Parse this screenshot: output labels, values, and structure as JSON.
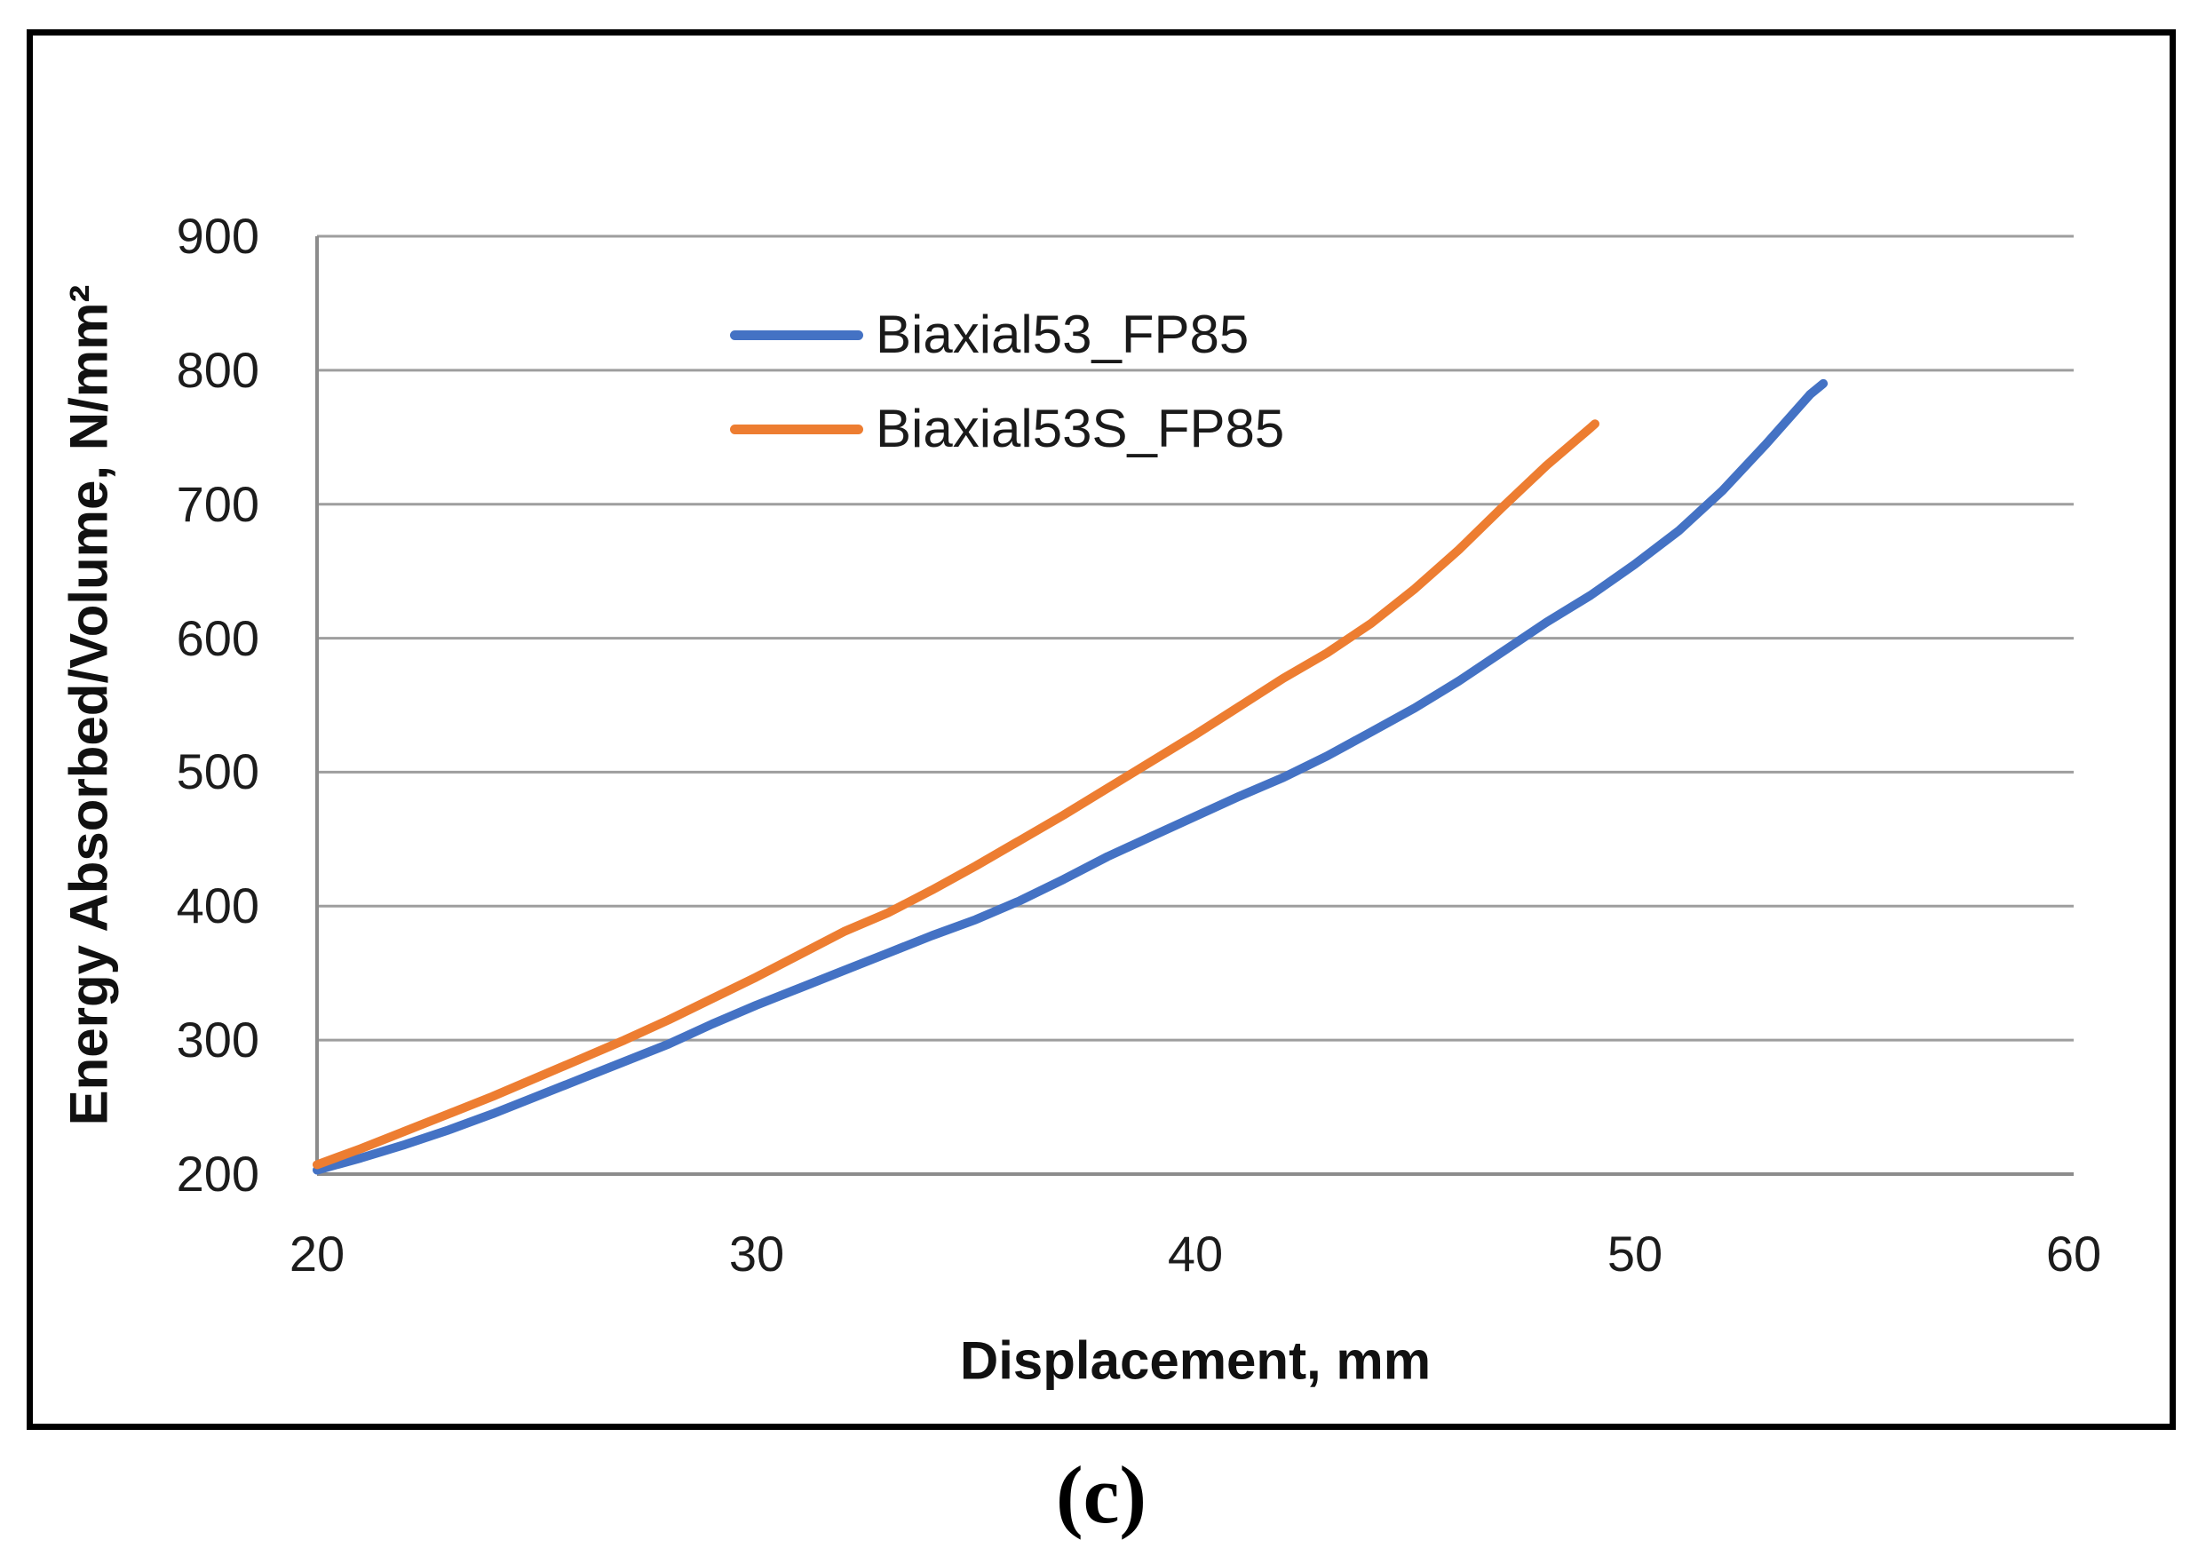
{
  "figure": {
    "caption": "(c)"
  },
  "chart_data": {
    "type": "line",
    "title": "",
    "xlabel": "Displacement, mm",
    "ylabel": "Energy Absorbed/Volume, N/mm²",
    "xlim": [
      20,
      60
    ],
    "ylim": [
      200,
      900
    ],
    "xticks": [
      20,
      30,
      40,
      50,
      60
    ],
    "yticks": [
      200,
      300,
      400,
      500,
      600,
      700,
      800,
      900
    ],
    "grid": "horizontal",
    "legend_position": "upper-left-of-center, stacked, transparent background",
    "colors": {
      "gridline": "#9E9E9E",
      "axis": "#8C8C8C",
      "text": "#1C1C1C"
    },
    "series": [
      {
        "name": "Biaxial53_FP85",
        "color": "#4472C4",
        "points": [
          [
            20,
            203
          ],
          [
            21,
            212
          ],
          [
            22,
            222
          ],
          [
            23,
            233
          ],
          [
            24,
            245
          ],
          [
            25,
            258
          ],
          [
            26,
            271
          ],
          [
            27,
            284
          ],
          [
            28,
            297
          ],
          [
            29,
            312
          ],
          [
            30,
            326
          ],
          [
            31,
            339
          ],
          [
            32,
            352
          ],
          [
            33,
            365
          ],
          [
            34,
            378
          ],
          [
            35,
            390
          ],
          [
            36,
            404
          ],
          [
            37,
            420
          ],
          [
            38,
            437
          ],
          [
            39,
            452
          ],
          [
            40,
            467
          ],
          [
            41,
            482
          ],
          [
            42,
            496
          ],
          [
            43,
            512
          ],
          [
            44,
            530
          ],
          [
            45,
            548
          ],
          [
            46,
            568
          ],
          [
            47,
            590
          ],
          [
            48,
            612
          ],
          [
            49,
            632
          ],
          [
            50,
            655
          ],
          [
            51,
            680
          ],
          [
            52,
            710
          ],
          [
            53,
            745
          ],
          [
            54,
            782
          ],
          [
            54.3,
            790
          ]
        ]
      },
      {
        "name": "Biaxial53S_FP85",
        "color": "#ED7D31",
        "points": [
          [
            20,
            207
          ],
          [
            21,
            219
          ],
          [
            22,
            232
          ],
          [
            23,
            245
          ],
          [
            24,
            258
          ],
          [
            25,
            272
          ],
          [
            26,
            286
          ],
          [
            27,
            300
          ],
          [
            28,
            315
          ],
          [
            29,
            331
          ],
          [
            30,
            347
          ],
          [
            31,
            364
          ],
          [
            32,
            381
          ],
          [
            33,
            395
          ],
          [
            34,
            412
          ],
          [
            35,
            430
          ],
          [
            36,
            449
          ],
          [
            37,
            468
          ],
          [
            38,
            488
          ],
          [
            39,
            508
          ],
          [
            40,
            528
          ],
          [
            41,
            549
          ],
          [
            42,
            570
          ],
          [
            43,
            589
          ],
          [
            44,
            611
          ],
          [
            45,
            637
          ],
          [
            46,
            666
          ],
          [
            47,
            698
          ],
          [
            48,
            729
          ],
          [
            49,
            757
          ],
          [
            49.1,
            760
          ]
        ]
      }
    ]
  }
}
